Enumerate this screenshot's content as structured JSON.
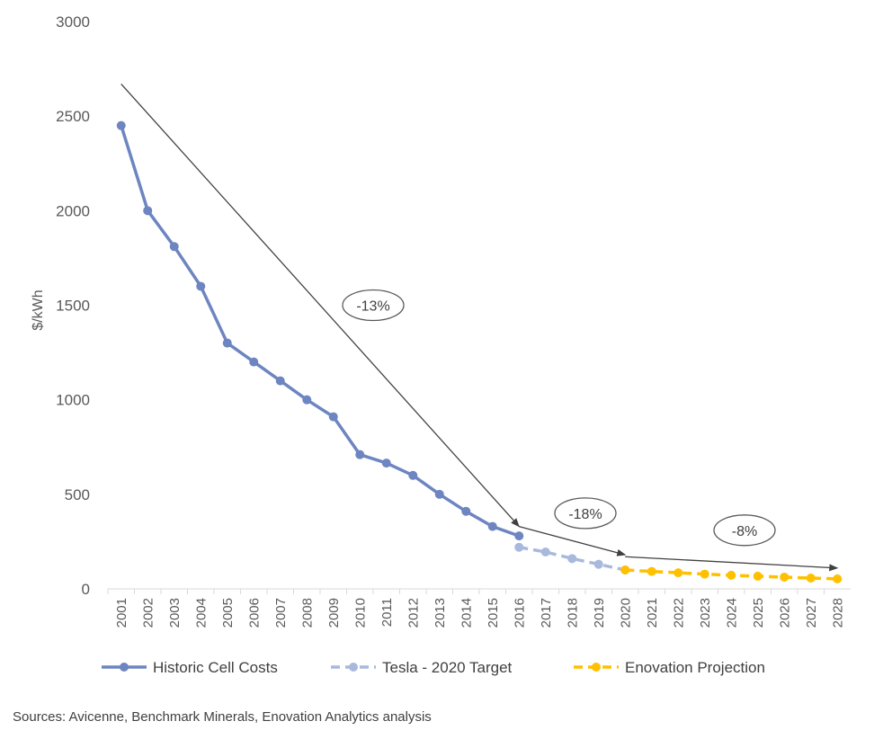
{
  "chart_data": {
    "type": "line",
    "title": "",
    "xlabel": "",
    "ylabel": "$/kWh",
    "ylim": [
      0,
      3000
    ],
    "yticks": [
      0,
      500,
      1000,
      1500,
      2000,
      2500,
      3000
    ],
    "categories": [
      "2001",
      "2002",
      "2003",
      "2004",
      "2005",
      "2006",
      "2007",
      "2008",
      "2009",
      "2010",
      "2011",
      "2012",
      "2013",
      "2014",
      "2015",
      "2016",
      "2017",
      "2018",
      "2019",
      "2020",
      "2021",
      "2022",
      "2023",
      "2024",
      "2025",
      "2026",
      "2027",
      "2028"
    ],
    "series": [
      {
        "name": "Historic Cell Costs",
        "color": "#6d85c0",
        "style": "solid",
        "points": [
          [
            "2001",
            2450
          ],
          [
            "2002",
            2000
          ],
          [
            "2003",
            1810
          ],
          [
            "2004",
            1600
          ],
          [
            "2005",
            1300
          ],
          [
            "2006",
            1200
          ],
          [
            "2007",
            1100
          ],
          [
            "2008",
            1000
          ],
          [
            "2009",
            910
          ],
          [
            "2010",
            710
          ],
          [
            "2011",
            665
          ],
          [
            "2012",
            600
          ],
          [
            "2013",
            500
          ],
          [
            "2014",
            410
          ],
          [
            "2015",
            330
          ],
          [
            "2016",
            280
          ]
        ]
      },
      {
        "name": "Tesla  - 2020 Target",
        "color": "#a9b9dd",
        "style": "dashed",
        "points": [
          [
            "2016",
            220
          ],
          [
            "2017",
            195
          ],
          [
            "2018",
            160
          ],
          [
            "2019",
            130
          ],
          [
            "2020",
            100
          ]
        ]
      },
      {
        "name": "Enovation Projection",
        "color": "#ffc000",
        "style": "dashed",
        "points": [
          [
            "2020",
            100
          ],
          [
            "2021",
            92
          ],
          [
            "2022",
            85
          ],
          [
            "2023",
            78
          ],
          [
            "2024",
            72
          ],
          [
            "2025",
            67
          ],
          [
            "2026",
            62
          ],
          [
            "2027",
            57
          ],
          [
            "2028",
            53
          ]
        ]
      }
    ],
    "annotations": [
      {
        "label": "-13%",
        "from": [
          "2001",
          2670
        ],
        "to": [
          "2016",
          330
        ],
        "label_at": [
          "2010",
          1500
        ]
      },
      {
        "label": "-18%",
        "from": [
          "2016",
          330
        ],
        "to": [
          "2020",
          180
        ],
        "label_at": [
          "2018",
          400
        ]
      },
      {
        "label": "-8%",
        "from": [
          "2020",
          170
        ],
        "to": [
          "2028",
          110
        ],
        "label_at": [
          "2024",
          310
        ]
      }
    ],
    "legend_position": "bottom"
  },
  "sources": "Sources: Avicenne, Benchmark Minerals, Enovation Analytics analysis"
}
